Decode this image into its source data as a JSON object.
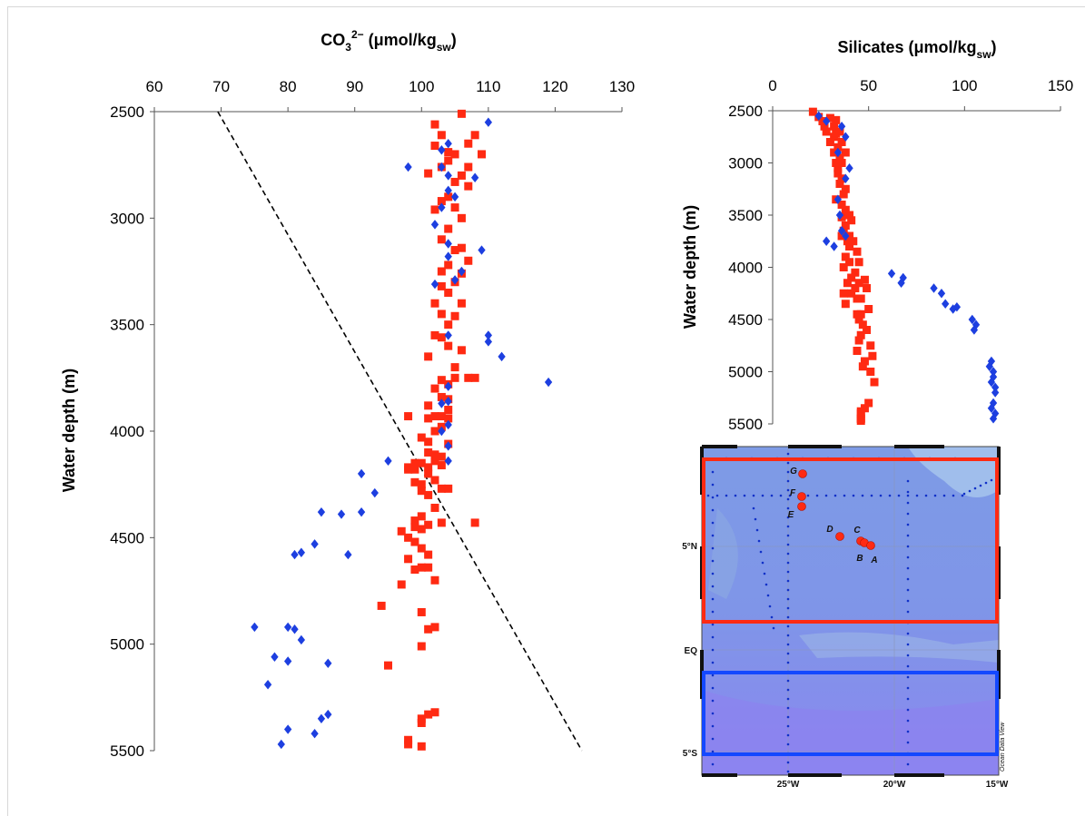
{
  "chart_data": [
    {
      "type": "scatter",
      "id": "co3",
      "title_main": "CO",
      "title_sub": "3",
      "title_sup": "2−",
      "title_unit": " (μmol/kg",
      "title_unit_sub": "sw",
      "title_close": ")",
      "ylabel": "Water depth (m)",
      "xlim": [
        60,
        130
      ],
      "ylim": [
        2500,
        5500
      ],
      "x_ticks": [
        "60",
        "70",
        "80",
        "90",
        "100",
        "110",
        "120",
        "130"
      ],
      "y_ticks": [
        "2500",
        "3000",
        "3500",
        "4000",
        "4500",
        "5000",
        "5500"
      ],
      "grid": false,
      "trend_line": {
        "x": [
          69.5,
          124
        ],
        "y": [
          2500,
          5500
        ]
      },
      "series": [
        {
          "color": "#ff2a12",
          "marker": "square",
          "x": [
            106,
            102,
            103,
            108,
            107,
            102,
            104,
            105,
            109,
            104,
            103,
            107,
            101,
            106,
            105,
            107,
            104,
            103,
            105,
            102,
            106,
            104,
            103,
            106,
            105,
            107,
            104,
            103,
            106,
            105,
            103,
            104,
            102,
            106,
            103,
            105,
            104,
            102,
            103,
            104,
            106,
            101,
            105,
            105,
            103,
            104,
            107,
            108,
            102,
            103,
            104,
            101,
            104,
            103,
            102,
            101,
            104,
            103,
            102,
            100,
            101,
            98,
            104,
            101,
            102,
            103,
            102,
            99,
            100,
            103,
            101,
            98,
            99,
            101,
            98,
            102,
            99,
            100,
            103,
            104,
            100,
            101,
            102,
            100,
            99,
            103,
            101,
            108,
            99,
            100,
            97,
            98,
            99,
            100,
            101,
            98,
            101,
            100,
            99,
            102,
            97,
            94,
            100,
            102,
            95,
            101,
            100,
            102,
            101,
            100,
            100,
            98,
            98,
            100
          ],
          "y": [
            2510,
            2560,
            2610,
            2610,
            2650,
            2660,
            2690,
            2700,
            2700,
            2730,
            2760,
            2760,
            2790,
            2800,
            2830,
            2850,
            2900,
            2920,
            2950,
            2960,
            3000,
            3050,
            3100,
            3140,
            3150,
            3200,
            3220,
            3250,
            3260,
            3300,
            3320,
            3350,
            3400,
            3400,
            3450,
            3460,
            3500,
            3550,
            3560,
            3600,
            3620,
            3650,
            3700,
            3750,
            3760,
            3780,
            3750,
            3750,
            3800,
            3840,
            3850,
            3880,
            3900,
            3930,
            3930,
            3940,
            3940,
            3980,
            4000,
            4030,
            4050,
            3930,
            4060,
            4100,
            4110,
            4120,
            4140,
            4150,
            4150,
            4160,
            4170,
            4170,
            4180,
            4200,
            4180,
            4230,
            4240,
            4250,
            4270,
            4270,
            4280,
            4300,
            4360,
            4400,
            4420,
            4430,
            4440,
            4430,
            4450,
            4460,
            4470,
            4500,
            4520,
            4550,
            4580,
            4600,
            4640,
            4640,
            4650,
            4700,
            4720,
            4820,
            4850,
            4920,
            5100,
            4930,
            5010,
            5320,
            5330,
            5370,
            5350,
            5450,
            5470,
            5480
          ]
        },
        {
          "color": "#1d3fe0",
          "marker": "diamond",
          "x": [
            110,
            104,
            103,
            98,
            103,
            104,
            108,
            104,
            105,
            103,
            102,
            104,
            109,
            104,
            106,
            105,
            102,
            110,
            110,
            112,
            104,
            104,
            103,
            119,
            104,
            103,
            104,
            104,
            95,
            91,
            93,
            85,
            88,
            91,
            84,
            82,
            81,
            89,
            75,
            80,
            81,
            82,
            78,
            80,
            86,
            77,
            85,
            86,
            80,
            84,
            79,
            104
          ],
          "y": [
            2550,
            2650,
            2680,
            2760,
            2760,
            2800,
            2810,
            2870,
            2900,
            2950,
            3030,
            3120,
            3150,
            3180,
            3250,
            3290,
            3310,
            3550,
            3580,
            3650,
            3790,
            3860,
            3870,
            3770,
            3970,
            4000,
            4070,
            4140,
            4140,
            4200,
            4290,
            4380,
            4390,
            4380,
            4530,
            4570,
            4580,
            4580,
            4920,
            4920,
            4930,
            4980,
            5060,
            5080,
            5090,
            5190,
            5350,
            5330,
            5400,
            5420,
            5470,
            3550
          ]
        }
      ]
    },
    {
      "type": "scatter",
      "id": "silicates",
      "title": "Silicates (μmol/kg",
      "title_unit_sub": "sw",
      "title_close": ")",
      "ylabel": "Water depth (m)",
      "xlim": [
        0,
        150
      ],
      "ylim": [
        2500,
        5500
      ],
      "x_ticks": [
        "0",
        "50",
        "100",
        "150"
      ],
      "y_ticks": [
        "2500",
        "3000",
        "3500",
        "4000",
        "4500",
        "5000",
        "5500"
      ],
      "grid": false,
      "series": [
        {
          "color": "#ff2a12",
          "marker": "square",
          "x": [
            21,
            24,
            30,
            33,
            26,
            27,
            32,
            28,
            35,
            33,
            32,
            30,
            36,
            34,
            32,
            38,
            35,
            33,
            36,
            34,
            34,
            36,
            35,
            38,
            37,
            33,
            36,
            38,
            40,
            36,
            41,
            38,
            37,
            40,
            36,
            39,
            42,
            40,
            44,
            38,
            40,
            45,
            37,
            43,
            41,
            48,
            39,
            45,
            43,
            49,
            37,
            41,
            46,
            44,
            38,
            50,
            44,
            46,
            45,
            47,
            49,
            46,
            45,
            51,
            44,
            52,
            48,
            47,
            51,
            53,
            50,
            48,
            46,
            46,
            46,
            46,
            46
          ],
          "y": [
            2510,
            2560,
            2570,
            2590,
            2600,
            2650,
            2650,
            2700,
            2700,
            2720,
            2750,
            2800,
            2800,
            2850,
            2900,
            2900,
            2950,
            3000,
            3000,
            3050,
            3100,
            3150,
            3200,
            3250,
            3300,
            3350,
            3400,
            3450,
            3500,
            3520,
            3550,
            3600,
            3650,
            3700,
            3700,
            3750,
            3750,
            3800,
            3850,
            3900,
            3950,
            3950,
            4000,
            4050,
            4100,
            4120,
            4150,
            4150,
            4200,
            4200,
            4250,
            4250,
            4300,
            4300,
            4350,
            4400,
            4450,
            4450,
            4500,
            4550,
            4600,
            4650,
            4700,
            4750,
            4800,
            4850,
            4900,
            4950,
            5000,
            5100,
            5300,
            5350,
            5400,
            5450,
            5470,
            5450,
            5380
          ]
        },
        {
          "color": "#1d3fe0",
          "marker": "diamond",
          "x": [
            24,
            28,
            36,
            38,
            34,
            40,
            38,
            34,
            35,
            36,
            38,
            32,
            28,
            62,
            68,
            67,
            84,
            88,
            90,
            94,
            96,
            104,
            106,
            105,
            114,
            113,
            115,
            115,
            114,
            116,
            116,
            115,
            114,
            116,
            115
          ],
          "y": [
            2550,
            2600,
            2650,
            2750,
            2900,
            3050,
            3150,
            3350,
            3500,
            3650,
            3700,
            3800,
            3750,
            4060,
            4100,
            4150,
            4200,
            4250,
            4350,
            4400,
            4380,
            4500,
            4550,
            4600,
            4900,
            4950,
            5000,
            5050,
            5100,
            5150,
            5200,
            5300,
            5350,
            5400,
            5450
          ]
        }
      ]
    }
  ],
  "map": {
    "stations": [
      {
        "label": "G"
      },
      {
        "label": "F"
      },
      {
        "label": "E"
      },
      {
        "label": "D"
      },
      {
        "label": "C"
      },
      {
        "label": "B"
      },
      {
        "label": "A"
      }
    ],
    "lat_labels": [
      "5°N",
      "EQ",
      "5°S"
    ],
    "lon_labels": [
      "25°W",
      "20°W",
      "15°W"
    ],
    "credit": "Ocean Data View",
    "box_colors": {
      "north": "#ff2a12",
      "south": "#1448ff"
    },
    "ocean_color": "#7d8fe6"
  }
}
